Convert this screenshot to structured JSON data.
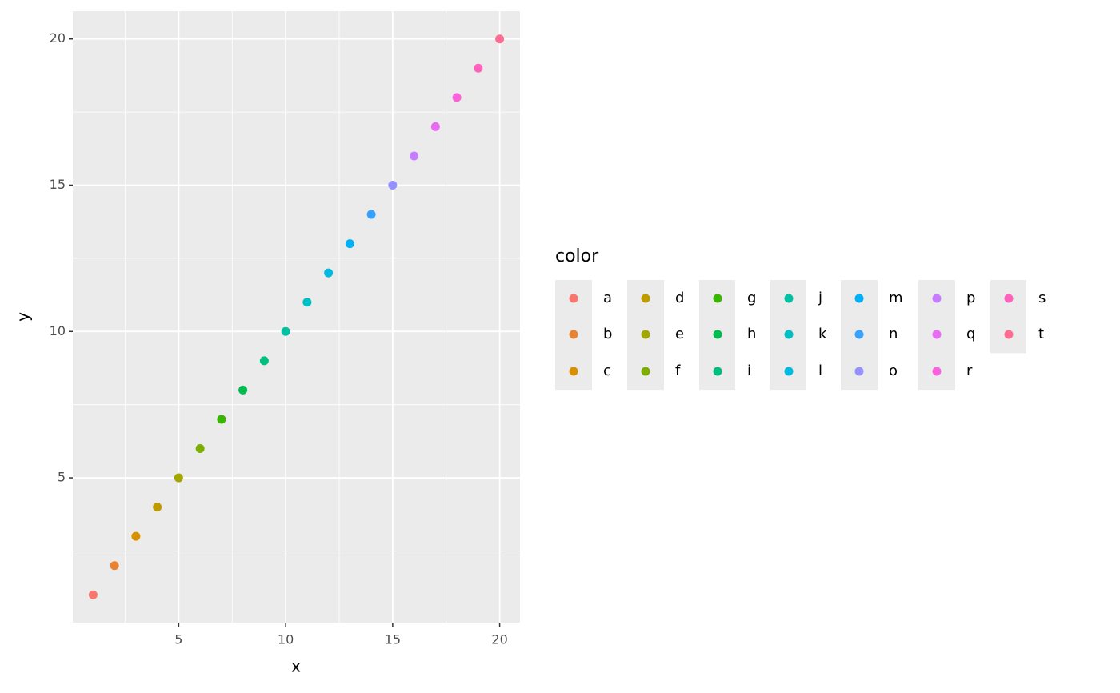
{
  "chart_data": {
    "type": "scatter",
    "x_label": "x",
    "y_label": "y",
    "legend_title": "color",
    "x": [
      1,
      2,
      3,
      4,
      5,
      6,
      7,
      8,
      9,
      10,
      11,
      12,
      13,
      14,
      15,
      16,
      17,
      18,
      19,
      20
    ],
    "y": [
      1,
      2,
      3,
      4,
      5,
      6,
      7,
      8,
      9,
      10,
      11,
      12,
      13,
      14,
      15,
      16,
      17,
      18,
      19,
      20
    ],
    "labels": [
      "a",
      "b",
      "c",
      "d",
      "e",
      "f",
      "g",
      "h",
      "i",
      "j",
      "k",
      "l",
      "m",
      "n",
      "o",
      "p",
      "q",
      "r",
      "s",
      "t"
    ],
    "colors": [
      "#F8766D",
      "#EA8331",
      "#D89000",
      "#C09B00",
      "#A3A500",
      "#7CAE00",
      "#39B600",
      "#00BB4E",
      "#00BF7D",
      "#00C1A3",
      "#00BFC4",
      "#00BAE0",
      "#00B0F6",
      "#35A2FF",
      "#9590FF",
      "#C77CFF",
      "#E76BF3",
      "#FA62DB",
      "#FF62BC",
      "#FF6C91"
    ],
    "xlim": [
      0.05,
      20.95
    ],
    "ylim": [
      0.05,
      20.95
    ],
    "xticks": [
      5,
      10,
      15,
      20
    ],
    "yticks": [
      5,
      10,
      15,
      20
    ],
    "xminor": [
      2.5,
      7.5,
      12.5,
      17.5
    ],
    "yminor": [
      2.5,
      7.5,
      12.5,
      17.5
    ],
    "grid": true
  }
}
